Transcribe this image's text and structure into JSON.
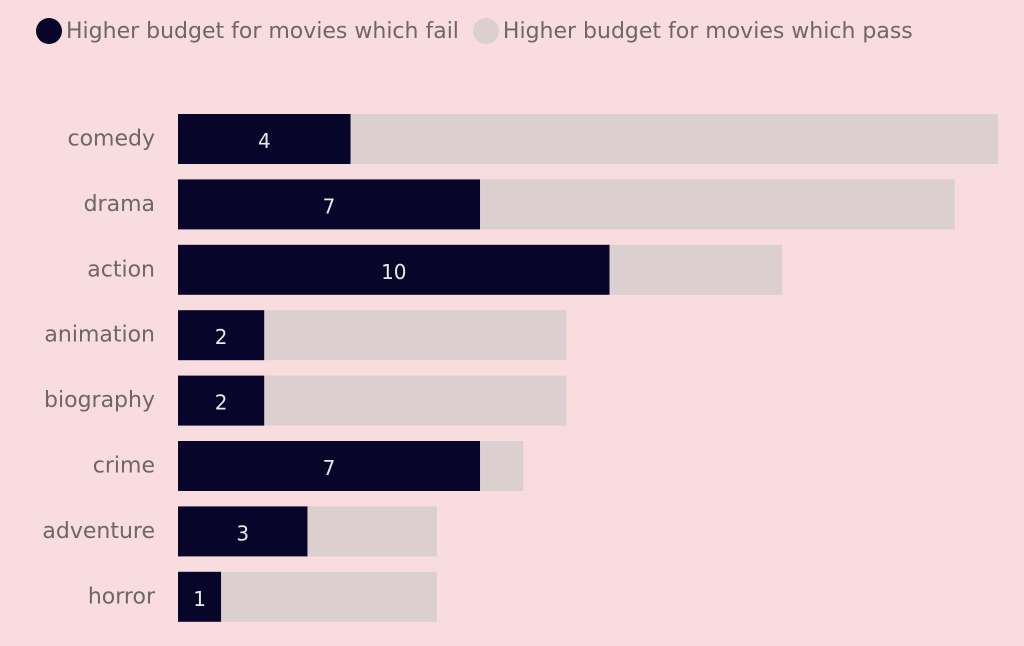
{
  "chart_data": {
    "type": "bar",
    "orientation": "horizontal",
    "stacked": true,
    "categories": [
      "comedy",
      "drama",
      "action",
      "animation",
      "biography",
      "crime",
      "adventure",
      "horror"
    ],
    "series": [
      {
        "name": "Higher budget for movies which fail",
        "color": "#07052a",
        "values": [
          4,
          7,
          10,
          2,
          2,
          7,
          3,
          1
        ]
      },
      {
        "name": "Higher budget for movies which pass",
        "color": "#dbcfcf",
        "values": [
          15,
          11,
          4,
          7,
          7,
          1,
          3,
          5
        ]
      }
    ],
    "data_labels": "first series values, centered",
    "legend_position": "top-left",
    "grid": false,
    "xlim": [
      0,
      19
    ]
  }
}
